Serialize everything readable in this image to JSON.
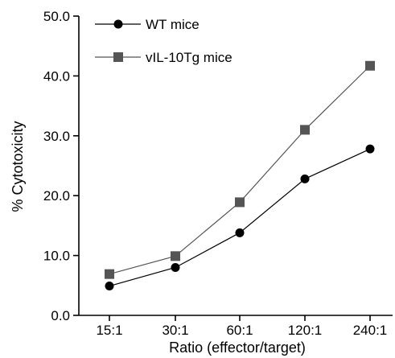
{
  "chart_data": {
    "type": "line",
    "title": "",
    "xlabel": "Ratio (effector/target)",
    "ylabel": "% Cytotoxicity",
    "categories": [
      "15:1",
      "30:1",
      "60:1",
      "120:1",
      "240:1"
    ],
    "ylim": [
      0,
      50
    ],
    "y_ticks": [
      "0.0",
      "10.0",
      "20.0",
      "30.0",
      "40.0",
      "50.0"
    ],
    "grid": false,
    "legend_position": "top-left",
    "series": [
      {
        "name": "WT mice",
        "values": [
          4.9,
          8.0,
          13.8,
          22.8,
          27.8
        ],
        "marker": "circle",
        "color": "#000000"
      },
      {
        "name": "vIL-10Tg mice",
        "values": [
          6.9,
          9.9,
          18.9,
          31.0,
          41.7
        ],
        "marker": "square",
        "color": "#555555"
      }
    ]
  }
}
